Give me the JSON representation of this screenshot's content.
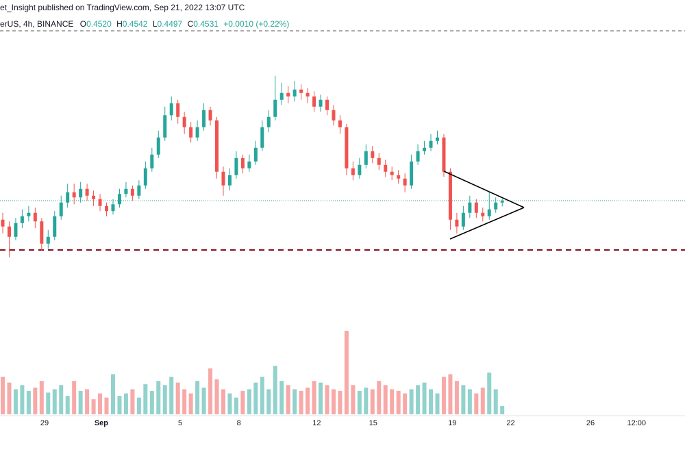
{
  "header": {
    "title": "et_Insight published on TradingView.com, Sep 21, 2022 13:07 UTC",
    "symbol": "erUS, 4h, BINANCE",
    "ohlc": [
      {
        "key": "O",
        "text": "0.4520"
      },
      {
        "key": "H",
        "text": "0.4542"
      },
      {
        "key": "L",
        "text": "0.4497"
      },
      {
        "key": "C",
        "text": "0.4531"
      }
    ],
    "change": "+0.0010 (+0.22%)"
  },
  "chart_data": {
    "type": "candlestick",
    "open": [
      0.442,
      0.438,
      0.432,
      0.44,
      0.444,
      0.446,
      0.441,
      0.428,
      0.432,
      0.444,
      0.452,
      0.458,
      0.455,
      0.46,
      0.456,
      0.454,
      0.45,
      0.447,
      0.451,
      0.457,
      0.46,
      0.456,
      0.462,
      0.472,
      0.48,
      0.49,
      0.503,
      0.51,
      0.502,
      0.496,
      0.49,
      0.496,
      0.506,
      0.5,
      0.47,
      0.462,
      0.468,
      0.478,
      0.472,
      0.476,
      0.484,
      0.496,
      0.502,
      0.512,
      0.516,
      0.514,
      0.518,
      0.516,
      0.514,
      0.508,
      0.512,
      0.506,
      0.5,
      0.496,
      0.472,
      0.468,
      0.474,
      0.482,
      0.478,
      0.474,
      0.47,
      0.468,
      0.466,
      0.462,
      0.476,
      0.482,
      0.484,
      0.488,
      0.49,
      0.47,
      0.442,
      0.438,
      0.446,
      0.452,
      0.446,
      0.444,
      0.448,
      0.452
    ],
    "high": [
      0.446,
      0.441,
      0.443,
      0.448,
      0.45,
      0.449,
      0.443,
      0.436,
      0.447,
      0.456,
      0.463,
      0.463,
      0.464,
      0.463,
      0.459,
      0.457,
      0.452,
      0.454,
      0.46,
      0.464,
      0.462,
      0.465,
      0.476,
      0.484,
      0.494,
      0.508,
      0.514,
      0.512,
      0.505,
      0.499,
      0.5,
      0.51,
      0.508,
      0.502,
      0.473,
      0.472,
      0.482,
      0.48,
      0.48,
      0.488,
      0.5,
      0.506,
      0.526,
      0.522,
      0.52,
      0.523,
      0.521,
      0.519,
      0.517,
      0.515,
      0.514,
      0.509,
      0.503,
      0.498,
      0.476,
      0.478,
      0.486,
      0.485,
      0.481,
      0.477,
      0.473,
      0.471,
      0.469,
      0.48,
      0.486,
      0.488,
      0.492,
      0.494,
      0.492,
      0.472,
      0.446,
      0.45,
      0.456,
      0.454,
      0.449,
      0.458,
      0.455,
      0.4542
    ],
    "low": [
      0.434,
      0.42,
      0.43,
      0.437,
      0.441,
      0.437,
      0.424,
      0.425,
      0.43,
      0.442,
      0.449,
      0.451,
      0.452,
      0.453,
      0.45,
      0.447,
      0.444,
      0.445,
      0.449,
      0.455,
      0.453,
      0.454,
      0.46,
      0.47,
      0.478,
      0.488,
      0.5,
      0.498,
      0.492,
      0.487,
      0.488,
      0.494,
      0.497,
      0.466,
      0.456,
      0.459,
      0.466,
      0.469,
      0.47,
      0.474,
      0.482,
      0.493,
      0.5,
      0.509,
      0.51,
      0.511,
      0.512,
      0.51,
      0.505,
      0.505,
      0.503,
      0.497,
      0.492,
      0.468,
      0.465,
      0.466,
      0.472,
      0.475,
      0.471,
      0.467,
      0.465,
      0.463,
      0.458,
      0.46,
      0.474,
      0.48,
      0.482,
      0.486,
      0.467,
      0.436,
      0.434,
      0.436,
      0.443,
      0.443,
      0.441,
      0.442,
      0.446,
      0.4497
    ],
    "close": [
      0.438,
      0.432,
      0.44,
      0.444,
      0.446,
      0.441,
      0.428,
      0.432,
      0.444,
      0.452,
      0.458,
      0.455,
      0.46,
      0.456,
      0.454,
      0.45,
      0.447,
      0.451,
      0.457,
      0.46,
      0.456,
      0.462,
      0.472,
      0.48,
      0.49,
      0.503,
      0.51,
      0.502,
      0.496,
      0.49,
      0.496,
      0.506,
      0.5,
      0.47,
      0.462,
      0.468,
      0.478,
      0.472,
      0.476,
      0.484,
      0.496,
      0.502,
      0.512,
      0.516,
      0.514,
      0.518,
      0.516,
      0.514,
      0.508,
      0.512,
      0.506,
      0.5,
      0.496,
      0.472,
      0.468,
      0.474,
      0.482,
      0.478,
      0.474,
      0.47,
      0.468,
      0.466,
      0.462,
      0.476,
      0.482,
      0.484,
      0.488,
      0.49,
      0.47,
      0.442,
      0.438,
      0.446,
      0.452,
      0.446,
      0.444,
      0.448,
      0.452,
      0.4531
    ],
    "volume": [
      45,
      38,
      30,
      35,
      28,
      32,
      40,
      26,
      30,
      35,
      22,
      40,
      28,
      30,
      18,
      25,
      20,
      48,
      22,
      25,
      30,
      20,
      36,
      28,
      40,
      35,
      45,
      38,
      30,
      25,
      40,
      32,
      55,
      42,
      30,
      25,
      20,
      28,
      30,
      38,
      45,
      30,
      58,
      40,
      35,
      30,
      28,
      32,
      40,
      38,
      35,
      30,
      28,
      100,
      35,
      28,
      32,
      30,
      40,
      35,
      30,
      28,
      25,
      30,
      35,
      38,
      30,
      25,
      45,
      48,
      40,
      35,
      30,
      25,
      32,
      50,
      30,
      10
    ],
    "ylim": [
      0.3823,
      0.5703
    ],
    "volume_ylim": [
      0,
      100
    ],
    "price_line": 0.4531,
    "support_level": 0.4243,
    "xticks": [
      {
        "value": 6.44,
        "label": "29"
      },
      {
        "value": 15.2,
        "label": "Sep"
      },
      {
        "value": 27.35,
        "label": "5"
      },
      {
        "value": 36.4,
        "label": "8"
      },
      {
        "value": 48.4,
        "label": "12"
      },
      {
        "value": 57.1,
        "label": "15"
      },
      {
        "value": 69.3,
        "label": "19"
      },
      {
        "value": 78.3,
        "label": "22"
      },
      {
        "value": 90.6,
        "label": "26"
      },
      {
        "value": 97.7,
        "label": "12:00"
      }
    ],
    "up_color": "#26a69a",
    "down_color": "#ef5350"
  }
}
